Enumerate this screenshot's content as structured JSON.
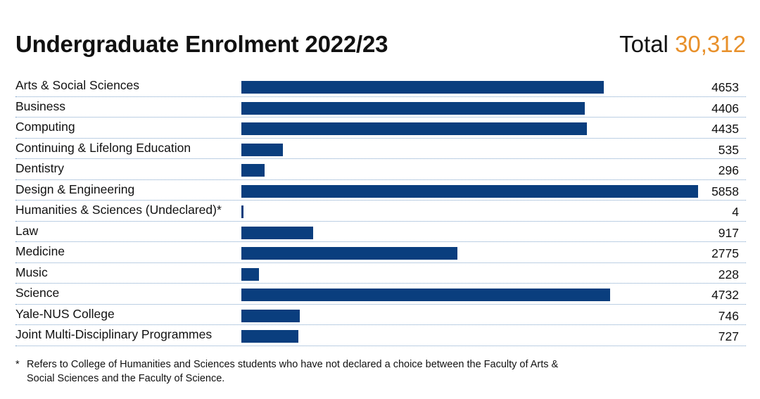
{
  "header": {
    "title": "Undergraduate Enrolment 2022/23",
    "total_label": "Total",
    "total_value": "30,312"
  },
  "colors": {
    "bar": "#0a3e7e",
    "accent": "#e8902a",
    "dots": "#7aa0c8"
  },
  "footnote": {
    "marker": "*",
    "text": "Refers to College of Humanities and Sciences students who have not declared a choice between the Faculty of Arts & Social Sciences and the Faculty of Science."
  },
  "chart_data": {
    "type": "bar",
    "orientation": "horizontal",
    "title": "Undergraduate Enrolment 2022/23",
    "xlabel": "",
    "ylabel": "",
    "grid": false,
    "categories": [
      "Arts & Social Sciences",
      "Business",
      "Computing",
      "Continuing & Lifelong Education",
      "Dentistry",
      "Design & Engineering",
      "Humanities & Sciences (Undeclared)*",
      "Law",
      "Medicine",
      "Music",
      "Science",
      "Yale-NUS College",
      "Joint Multi-Disciplinary Programmes"
    ],
    "values": [
      4653,
      4406,
      4435,
      535,
      296,
      5858,
      4,
      917,
      2775,
      228,
      4732,
      746,
      727
    ],
    "xlim": [
      0,
      5858
    ]
  }
}
